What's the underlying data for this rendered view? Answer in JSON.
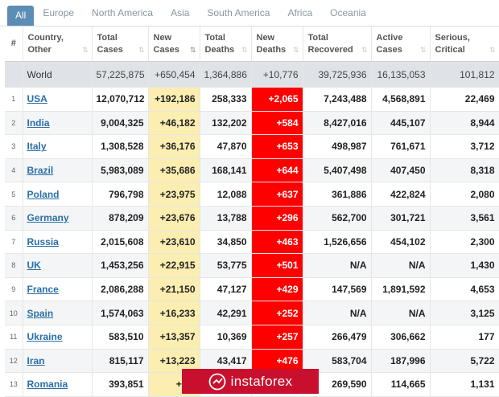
{
  "tabs": [
    "All",
    "Europe",
    "North America",
    "Asia",
    "South America",
    "Africa",
    "Oceania"
  ],
  "headers": {
    "hash": "#",
    "country": [
      "Country,",
      "Other"
    ],
    "total_cases": [
      "Total",
      "Cases"
    ],
    "new_cases": [
      "New",
      "Cases"
    ],
    "total_deaths": [
      "Total",
      "Deaths"
    ],
    "new_deaths": [
      "New",
      "Deaths"
    ],
    "total_recovered": [
      "Total",
      "Recovered"
    ],
    "active_cases": [
      "Active",
      "Cases"
    ],
    "serious_critical": [
      "Serious,",
      "Critical"
    ]
  },
  "world": {
    "country": "World",
    "total_cases": "57,225,875",
    "new_cases": "+650,454",
    "total_deaths": "1,364,886",
    "new_deaths": "+10,776",
    "total_recovered": "39,725,936",
    "active_cases": "16,135,053",
    "serious_critical": "101,812"
  },
  "rows": [
    {
      "num": "1",
      "country": "USA",
      "total_cases": "12,070,712",
      "new_cases": "+192,186",
      "total_deaths": "258,333",
      "new_deaths": "+2,065",
      "total_recovered": "7,243,488",
      "active_cases": "4,568,891",
      "serious_critical": "22,469"
    },
    {
      "num": "2",
      "country": "India",
      "total_cases": "9,004,325",
      "new_cases": "+46,182",
      "total_deaths": "132,202",
      "new_deaths": "+584",
      "total_recovered": "8,427,016",
      "active_cases": "445,107",
      "serious_critical": "8,944"
    },
    {
      "num": "3",
      "country": "Italy",
      "total_cases": "1,308,528",
      "new_cases": "+36,176",
      "total_deaths": "47,870",
      "new_deaths": "+653",
      "total_recovered": "498,987",
      "active_cases": "761,671",
      "serious_critical": "3,712"
    },
    {
      "num": "4",
      "country": "Brazil",
      "total_cases": "5,983,089",
      "new_cases": "+35,686",
      "total_deaths": "168,141",
      "new_deaths": "+644",
      "total_recovered": "5,407,498",
      "active_cases": "407,450",
      "serious_critical": "8,318"
    },
    {
      "num": "5",
      "country": "Poland",
      "total_cases": "796,798",
      "new_cases": "+23,975",
      "total_deaths": "12,088",
      "new_deaths": "+637",
      "total_recovered": "361,886",
      "active_cases": "422,824",
      "serious_critical": "2,080"
    },
    {
      "num": "6",
      "country": "Germany",
      "total_cases": "878,209",
      "new_cases": "+23,676",
      "total_deaths": "13,788",
      "new_deaths": "+296",
      "total_recovered": "562,700",
      "active_cases": "301,721",
      "serious_critical": "3,561"
    },
    {
      "num": "7",
      "country": "Russia",
      "total_cases": "2,015,608",
      "new_cases": "+23,610",
      "total_deaths": "34,850",
      "new_deaths": "+463",
      "total_recovered": "1,526,656",
      "active_cases": "454,102",
      "serious_critical": "2,300"
    },
    {
      "num": "8",
      "country": "UK",
      "total_cases": "1,453,256",
      "new_cases": "+22,915",
      "total_deaths": "53,775",
      "new_deaths": "+501",
      "total_recovered": "N/A",
      "active_cases": "N/A",
      "serious_critical": "1,430"
    },
    {
      "num": "9",
      "country": "France",
      "total_cases": "2,086,288",
      "new_cases": "+21,150",
      "total_deaths": "47,127",
      "new_deaths": "+429",
      "total_recovered": "147,569",
      "active_cases": "1,891,592",
      "serious_critical": "4,653"
    },
    {
      "num": "10",
      "country": "Spain",
      "total_cases": "1,574,063",
      "new_cases": "+16,233",
      "total_deaths": "42,291",
      "new_deaths": "+252",
      "total_recovered": "N/A",
      "active_cases": "N/A",
      "serious_critical": "3,125"
    },
    {
      "num": "11",
      "country": "Ukraine",
      "total_cases": "583,510",
      "new_cases": "+13,357",
      "total_deaths": "10,369",
      "new_deaths": "+257",
      "total_recovered": "266,479",
      "active_cases": "306,662",
      "serious_critical": "177"
    },
    {
      "num": "12",
      "country": "Iran",
      "total_cases": "815,117",
      "new_cases": "+13,223",
      "total_deaths": "43,417",
      "new_deaths": "+476",
      "total_recovered": "583,704",
      "active_cases": "187,996",
      "serious_critical": "5,722"
    },
    {
      "num": "13",
      "country": "Romania",
      "total_cases": "393,851",
      "new_cases": "+10,",
      "total_deaths": "",
      "new_deaths": "",
      "total_recovered": "269,590",
      "active_cases": "114,665",
      "serious_critical": "1,131"
    }
  ],
  "watermark": {
    "text": "instaforex",
    "icon": "instaforex-logo-icon"
  },
  "colors": {
    "tab_active": "#5b8db5",
    "new_cases_bg": "#fbeeb0",
    "new_deaths_bg": "#ff0000",
    "link": "#2a6fa8",
    "watermark_bg": "#c8102e"
  }
}
